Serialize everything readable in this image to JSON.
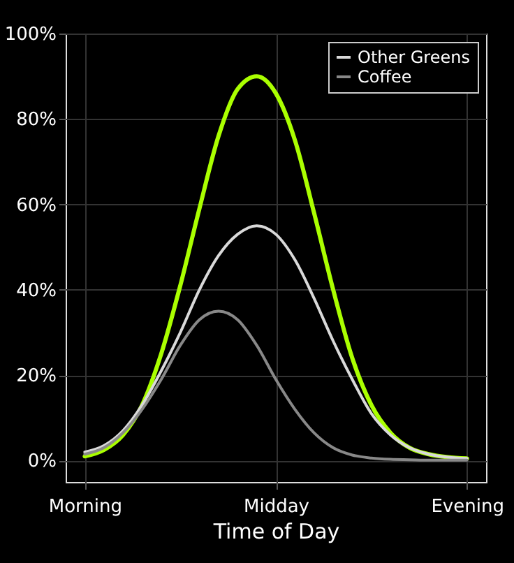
{
  "chart_data": {
    "type": "line",
    "xlabel": "Time of Day",
    "categories": [
      "Morning",
      null,
      null,
      null,
      null,
      null,
      null,
      null,
      null,
      null,
      "Midday",
      null,
      null,
      null,
      null,
      null,
      null,
      null,
      null,
      null,
      "Evening"
    ],
    "series": [
      {
        "color": "#aaff00",
        "values": [
          1,
          2.5,
          6,
          13,
          25,
          41,
          59,
          76,
          87,
          90,
          86,
          75,
          58,
          40,
          24,
          13,
          6.5,
          3,
          1.5,
          0.8,
          0.5
        ]
      },
      {
        "name": "Other Greens",
        "color": "#d9d9d9",
        "values": [
          2,
          3.5,
          7,
          13,
          21,
          30,
          40,
          48,
          53,
          55,
          53,
          47,
          38,
          28,
          19,
          11,
          6,
          3,
          1.5,
          0.8,
          0.5
        ]
      },
      {
        "name": "Coffee",
        "color": "#888888",
        "values": [
          1.5,
          3,
          6.5,
          12,
          19,
          27,
          33,
          35,
          33,
          27,
          19,
          12,
          6.5,
          3,
          1.3,
          0.6,
          0.3,
          0.2,
          0.1,
          0.1,
          0.1
        ]
      }
    ],
    "ylim": [
      -5,
      100
    ],
    "yticks": [
      {
        "value": 0,
        "label": "0%"
      },
      {
        "value": 20,
        "label": "20%"
      },
      {
        "value": 40,
        "label": "40%"
      },
      {
        "value": 60,
        "label": "60%"
      },
      {
        "value": 80,
        "label": "80%"
      },
      {
        "value": 100,
        "label": "100%"
      }
    ],
    "grid": true,
    "legend": "top right",
    "marker": "none",
    "line_style": "solid"
  }
}
